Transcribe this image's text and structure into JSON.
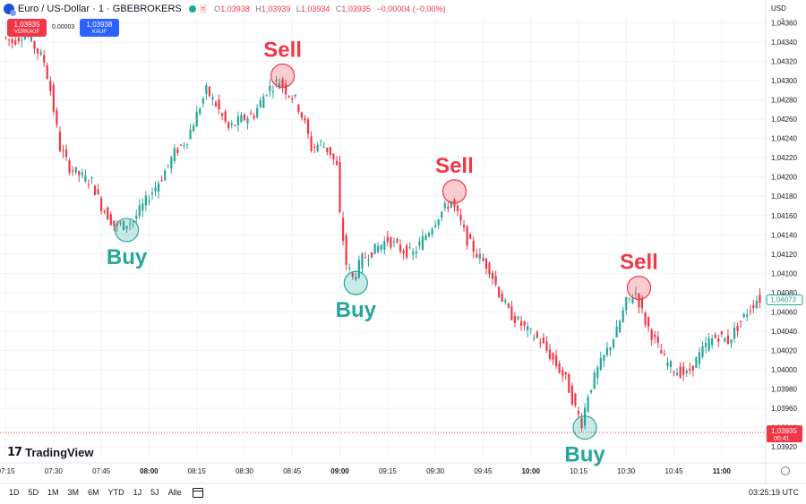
{
  "header": {
    "symbol_title": "Euro / US-Dollar · 1 · GBEBROKERS",
    "status_badge": "≈",
    "ohlc": [
      {
        "key": "O",
        "value": "1,03938"
      },
      {
        "key": "H",
        "value": "1,03939"
      },
      {
        "key": "L",
        "value": "1,03934"
      },
      {
        "key": "C",
        "value": "1,03935"
      },
      {
        "key": "",
        "value": "−0,00004 (−0,00%)"
      }
    ],
    "sell_price": "1,03935",
    "sell_label": "VERKAUF",
    "buy_price": "1,03938",
    "buy_label": "KAUF",
    "spread": "0,00003",
    "currency": "USD",
    "colors": {
      "sell": "#f23645",
      "buy": "#2962ff"
    }
  },
  "branding": {
    "logo_mark": "17",
    "logo_text": "TradingView"
  },
  "toolbar": {
    "ranges": [
      "1D",
      "5D",
      "1M",
      "3M",
      "6M",
      "YTD",
      "1J",
      "5J",
      "Alle"
    ],
    "clock": "03:25:19 UTC"
  },
  "chart_data": {
    "type": "candlestick",
    "title": "",
    "colors": {
      "up": "#26a69a",
      "down": "#f23645",
      "grid": "#f0f3fa",
      "last_price_line": "#f23645"
    },
    "ylim": [
      1.0391,
      1.04365
    ],
    "y_ticks": [
      "1,04360",
      "1,04340",
      "1,04320",
      "1,04300",
      "1,04280",
      "1,04260",
      "1,04240",
      "1,04220",
      "1,04200",
      "1,04180",
      "1,04160",
      "1,04140",
      "1,04120",
      "1,04100",
      "1,04080",
      "1,04060",
      "1,04040",
      "1,04020",
      "1,04000",
      "1,03980",
      "1,03960",
      "1,03940",
      "1,03920"
    ],
    "x_ticks": [
      {
        "label": "07:15",
        "bold": false
      },
      {
        "label": "07:30",
        "bold": false
      },
      {
        "label": "07:45",
        "bold": false
      },
      {
        "label": "08:00",
        "bold": true
      },
      {
        "label": "08:15",
        "bold": false
      },
      {
        "label": "08:30",
        "bold": false
      },
      {
        "label": "08:45",
        "bold": false
      },
      {
        "label": "09:00",
        "bold": true
      },
      {
        "label": "09:15",
        "bold": false
      },
      {
        "label": "09:30",
        "bold": false
      },
      {
        "label": "09:45",
        "bold": false
      },
      {
        "label": "10:00",
        "bold": true
      },
      {
        "label": "10:15",
        "bold": false
      },
      {
        "label": "10:30",
        "bold": false
      },
      {
        "label": "10:45",
        "bold": false
      },
      {
        "label": "11:00",
        "bold": true
      }
    ],
    "time_start": "07:15",
    "time_end": "11:12",
    "price_path": [
      [
        "07:15",
        1.04345
      ],
      [
        "07:18",
        1.0434
      ],
      [
        "07:22",
        1.0435
      ],
      [
        "07:25",
        1.04335
      ],
      [
        "07:28",
        1.0432
      ],
      [
        "07:30",
        1.0429
      ],
      [
        "07:33",
        1.0423
      ],
      [
        "07:36",
        1.0421
      ],
      [
        "07:40",
        1.042
      ],
      [
        "07:43",
        1.04195
      ],
      [
        "07:46",
        1.0417
      ],
      [
        "07:50",
        1.0415
      ],
      [
        "07:53",
        1.0415
      ],
      [
        "07:56",
        1.04155
      ],
      [
        "07:58",
        1.04165
      ],
      [
        "08:01",
        1.0418
      ],
      [
        "08:05",
        1.042
      ],
      [
        "08:09",
        1.04225
      ],
      [
        "08:13",
        1.0424
      ],
      [
        "08:16",
        1.04265
      ],
      [
        "08:19",
        1.0429
      ],
      [
        "08:22",
        1.04275
      ],
      [
        "08:26",
        1.0425
      ],
      [
        "08:30",
        1.0426
      ],
      [
        "08:34",
        1.04265
      ],
      [
        "08:38",
        1.0429
      ],
      [
        "08:42",
        1.043
      ],
      [
        "08:44",
        1.0429
      ],
      [
        "08:47",
        1.0428
      ],
      [
        "08:50",
        1.04255
      ],
      [
        "08:52",
        1.0423
      ],
      [
        "08:55",
        1.04235
      ],
      [
        "08:58",
        1.04225
      ],
      [
        "09:00",
        1.0421
      ],
      [
        "09:01",
        1.0416
      ],
      [
        "09:03",
        1.0411
      ],
      [
        "09:05",
        1.04095
      ],
      [
        "09:08",
        1.04115
      ],
      [
        "09:12",
        1.04125
      ],
      [
        "09:16",
        1.04135
      ],
      [
        "09:20",
        1.04125
      ],
      [
        "09:24",
        1.0412
      ],
      [
        "09:28",
        1.0414
      ],
      [
        "09:32",
        1.0416
      ],
      [
        "09:36",
        1.04175
      ],
      [
        "09:38",
        1.0416
      ],
      [
        "09:41",
        1.04135
      ],
      [
        "09:44",
        1.0412
      ],
      [
        "09:48",
        1.04105
      ],
      [
        "09:51",
        1.0408
      ],
      [
        "09:54",
        1.0406
      ],
      [
        "09:57",
        1.0405
      ],
      [
        "10:00",
        1.0404
      ],
      [
        "10:04",
        1.0403
      ],
      [
        "10:08",
        1.0401
      ],
      [
        "10:12",
        1.0399
      ],
      [
        "10:15",
        1.0396
      ],
      [
        "10:17",
        1.03945
      ],
      [
        "10:19",
        1.03975
      ],
      [
        "10:22",
        1.04
      ],
      [
        "10:25",
        1.0402
      ],
      [
        "10:28",
        1.0404
      ],
      [
        "10:31",
        1.0407
      ],
      [
        "10:34",
        1.0408
      ],
      [
        "10:37",
        1.0405
      ],
      [
        "10:40",
        1.0403
      ],
      [
        "10:43",
        1.0401
      ],
      [
        "10:46",
        1.04
      ],
      [
        "10:50",
        1.03995
      ],
      [
        "10:53",
        1.0401
      ],
      [
        "10:57",
        1.0403
      ],
      [
        "11:00",
        1.04035
      ],
      [
        "11:03",
        1.0403
      ],
      [
        "11:06",
        1.04045
      ],
      [
        "11:09",
        1.0406
      ],
      [
        "11:12",
        1.04073
      ]
    ],
    "last_price": {
      "value": 1.04073,
      "label": "1,04073"
    },
    "current_bid": {
      "value": 1.03935,
      "label": "1,03935",
      "countdown": "00:41"
    },
    "annotations": [
      {
        "text": "Buy",
        "time": "07:53",
        "price": 1.04145,
        "color": "#26a69a",
        "text_pos": "below"
      },
      {
        "text": "Sell",
        "time": "08:42",
        "price": 1.04305,
        "color": "#f23645",
        "text_pos": "above"
      },
      {
        "text": "Buy",
        "time": "09:05",
        "price": 1.0409,
        "color": "#26a69a",
        "text_pos": "below"
      },
      {
        "text": "Sell",
        "time": "09:36",
        "price": 1.04185,
        "color": "#f23645",
        "text_pos": "above"
      },
      {
        "text": "Buy",
        "time": "10:17",
        "price": 1.0394,
        "color": "#26a69a",
        "text_pos": "below"
      },
      {
        "text": "Sell",
        "time": "10:34",
        "price": 1.04085,
        "color": "#f23645",
        "text_pos": "above"
      }
    ]
  }
}
